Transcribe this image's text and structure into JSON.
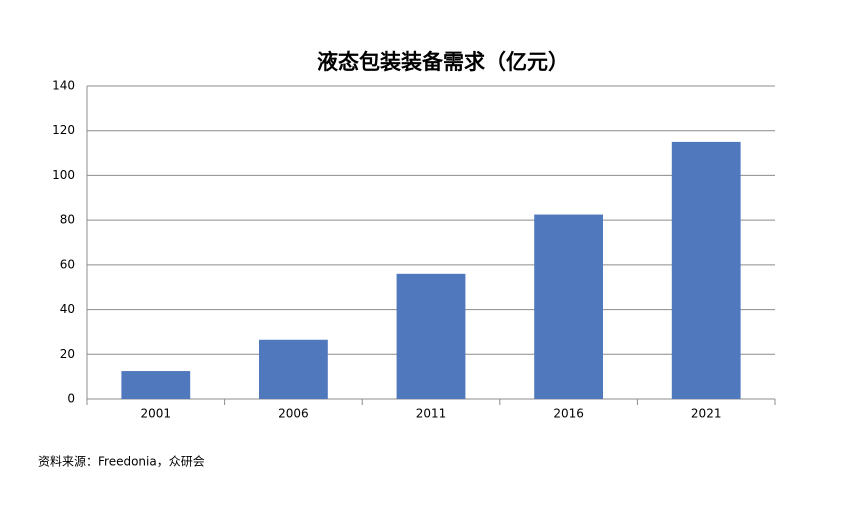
{
  "chart_data": {
    "type": "bar",
    "title": "液态包装装备需求（亿元）",
    "categories": [
      "2001",
      "2006",
      "2011",
      "2016",
      "2021"
    ],
    "values": [
      12.5,
      26.5,
      56,
      82.5,
      115
    ],
    "color": "#5078bc",
    "ylim": [
      0,
      140
    ],
    "yticks": [
      0,
      20,
      40,
      60,
      80,
      100,
      120,
      140
    ],
    "grid": true,
    "source": "资料来源：Freedonia，众研会"
  }
}
